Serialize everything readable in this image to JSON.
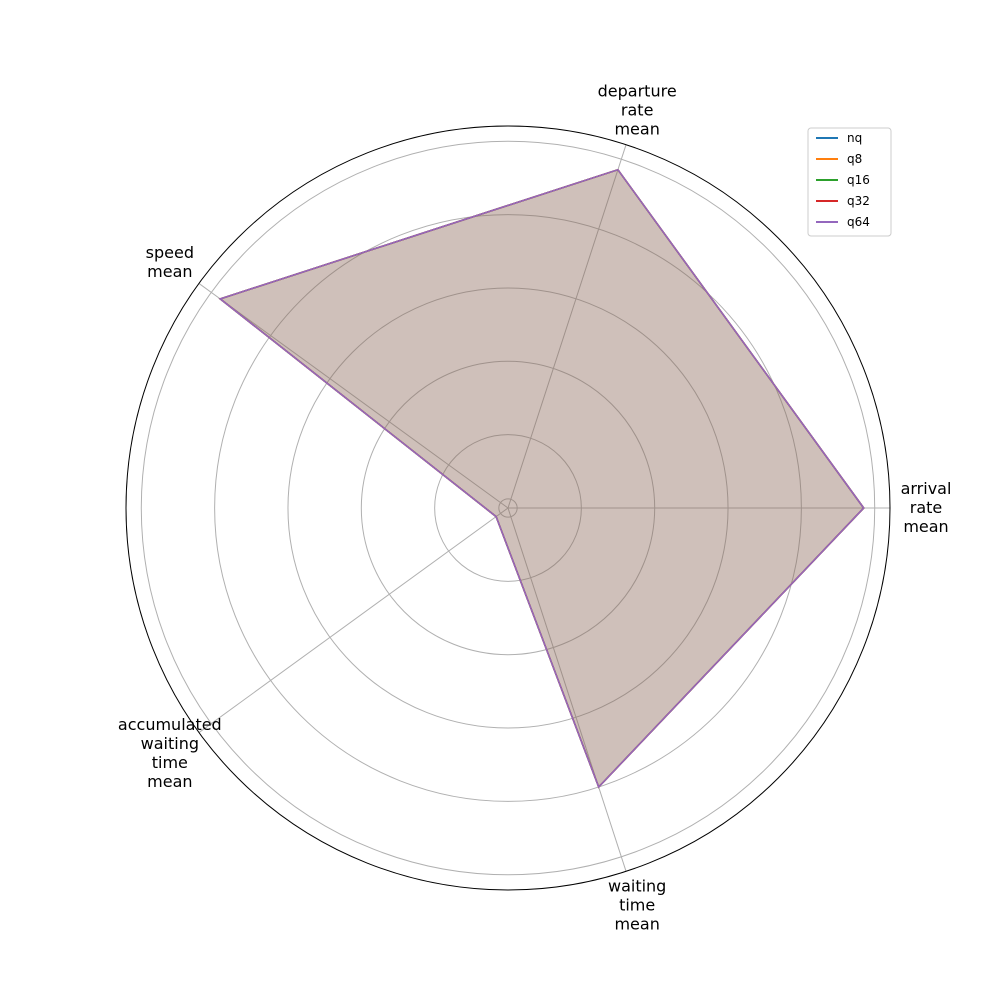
{
  "chart_data": {
    "type": "radar",
    "axes": [
      {
        "lines": [
          "arrival",
          "rate",
          "mean"
        ]
      },
      {
        "lines": [
          "departure",
          "rate",
          "mean"
        ]
      },
      {
        "lines": [
          "speed",
          "mean"
        ]
      },
      {
        "lines": [
          "accumulated",
          "waiting",
          "time",
          "mean"
        ]
      },
      {
        "lines": [
          "waiting",
          "time",
          "mean"
        ]
      }
    ],
    "rmax": 1.0,
    "grid_rings": [
      0.0,
      0.2,
      0.4,
      0.6,
      0.8,
      1.0
    ],
    "grid": true,
    "legend_position": "top-right",
    "fill_color": "#8c564b",
    "series": [
      {
        "name": "nq",
        "color": "#1f77b4",
        "values": [
          0.97,
          0.97,
          0.97,
          0.04,
          0.8
        ]
      },
      {
        "name": "q8",
        "color": "#ff7f0e",
        "values": [
          0.97,
          0.97,
          0.97,
          0.04,
          0.8
        ]
      },
      {
        "name": "q16",
        "color": "#2ca02c",
        "values": [
          0.97,
          0.97,
          0.97,
          0.04,
          0.8
        ]
      },
      {
        "name": "q32",
        "color": "#d62728",
        "values": [
          0.97,
          0.97,
          0.97,
          0.04,
          0.8
        ]
      },
      {
        "name": "q64",
        "color": "#9467bd",
        "values": [
          0.97,
          0.97,
          0.97,
          0.04,
          0.8
        ]
      }
    ]
  }
}
